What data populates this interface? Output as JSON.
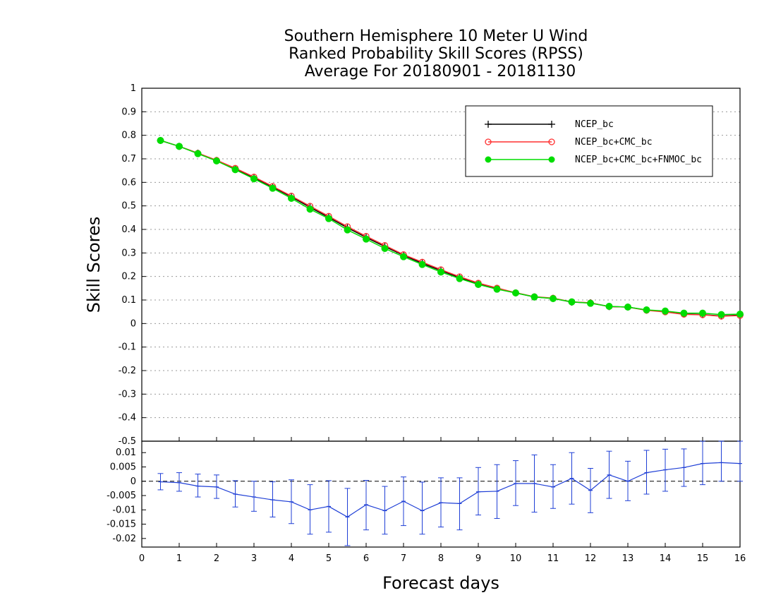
{
  "chart_data": {
    "type": "line",
    "title": [
      "Southern Hemisphere 10 Meter U Wind",
      "Ranked Probability Skill Scores (RPSS)",
      "Average For 20180901 - 20181130"
    ],
    "xlabel": "Forecast days",
    "ylabel": "Skill Scores",
    "xlim": [
      0,
      16
    ],
    "x_ticks": [
      "0",
      "1",
      "2",
      "3",
      "4",
      "5",
      "6",
      "7",
      "8",
      "9",
      "10",
      "11",
      "12",
      "13",
      "14",
      "15",
      "16"
    ],
    "x": [
      0.5,
      1,
      1.5,
      2,
      2.5,
      3,
      3.5,
      4,
      4.5,
      5,
      5.5,
      6,
      6.5,
      7,
      7.5,
      8,
      8.5,
      9,
      9.5,
      10,
      10.5,
      11,
      11.5,
      12,
      12.5,
      13,
      13.5,
      14,
      14.5,
      15,
      15.5,
      16
    ],
    "legend_position": "top-right",
    "top_panel": {
      "ylim": [
        -0.5,
        1
      ],
      "y_ticks": [
        "1",
        "0.9",
        "0.8",
        "0.7",
        "0.6",
        "0.5",
        "0.4",
        "0.3",
        "0.2",
        "0.1",
        "0",
        "-0.1",
        "-0.2",
        "-0.3",
        "-0.4",
        "-0.5"
      ],
      "grid": true,
      "series": [
        {
          "name": "NCEP_bc",
          "color": "#000000",
          "marker": "plus",
          "values": [
            0.778,
            0.753,
            0.724,
            0.693,
            0.658,
            0.62,
            0.58,
            0.538,
            0.494,
            0.451,
            0.407,
            0.366,
            0.327,
            0.29,
            0.256,
            0.225,
            0.195,
            0.168,
            0.148,
            0.13,
            0.113,
            0.107,
            0.091,
            0.088,
            0.072,
            0.07,
            0.057,
            0.051,
            0.04,
            0.038,
            0.032,
            0.036
          ]
        },
        {
          "name": "NCEP_bc+CMC_bc",
          "color": "#ff3030",
          "marker": "open-circle",
          "values": [
            0.778,
            0.753,
            0.724,
            0.694,
            0.66,
            0.623,
            0.583,
            0.542,
            0.499,
            0.456,
            0.412,
            0.371,
            0.332,
            0.293,
            0.261,
            0.229,
            0.199,
            0.172,
            0.151,
            0.131,
            0.114,
            0.108,
            0.092,
            0.088,
            0.072,
            0.07,
            0.056,
            0.049,
            0.039,
            0.037,
            0.031,
            0.034
          ]
        },
        {
          "name": "NCEP_bc+CMC_bc+FNMOC_bc",
          "color": "#00dd00",
          "marker": "filled-circle",
          "values": [
            0.778,
            0.753,
            0.722,
            0.691,
            0.654,
            0.615,
            0.575,
            0.532,
            0.486,
            0.446,
            0.398,
            0.359,
            0.319,
            0.284,
            0.251,
            0.219,
            0.191,
            0.166,
            0.146,
            0.13,
            0.113,
            0.106,
            0.092,
            0.086,
            0.073,
            0.07,
            0.058,
            0.053,
            0.044,
            0.044,
            0.038,
            0.04
          ]
        }
      ]
    },
    "bottom_panel": {
      "ylim": [
        -0.023,
        0.014
      ],
      "y_ticks": [
        "0.01",
        "0.005",
        "0",
        "-0.005",
        "-0.01",
        "-0.015",
        "-0.02"
      ],
      "reference_line": 0,
      "series": [
        {
          "name": "",
          "color": "#1f3fd6",
          "error_bars": true,
          "values": [
            -0.0002,
            -0.0005,
            -0.0017,
            -0.002,
            -0.0045,
            -0.0055,
            -0.0065,
            -0.0072,
            -0.01,
            -0.0088,
            -0.0125,
            -0.0082,
            -0.0103,
            -0.007,
            -0.0103,
            -0.0075,
            -0.0078,
            -0.0037,
            -0.0035,
            -0.0008,
            -0.0008,
            -0.002,
            0.001,
            -0.0032,
            0.0022,
            0.0,
            0.003,
            0.004,
            0.0048,
            0.0062,
            0.0065,
            0.0062
          ],
          "lower": [
            -0.003,
            -0.0035,
            -0.0055,
            -0.006,
            -0.009,
            -0.0105,
            -0.0125,
            -0.0148,
            -0.0185,
            -0.0178,
            -0.0225,
            -0.017,
            -0.0185,
            -0.0155,
            -0.0185,
            -0.016,
            -0.017,
            -0.0118,
            -0.013,
            -0.0085,
            -0.0108,
            -0.0095,
            -0.008,
            -0.011,
            -0.006,
            -0.0068,
            -0.0045,
            -0.0035,
            -0.0018,
            -0.0012,
            0.0,
            0.0
          ],
          "upper": [
            0.0027,
            0.003,
            0.0025,
            0.0022,
            0.0002,
            0.0,
            -0.0002,
            0.0005,
            -0.0012,
            0.0002,
            -0.0025,
            0.0003,
            -0.0018,
            0.0015,
            -0.0003,
            0.0012,
            0.0012,
            0.0048,
            0.0058,
            0.0072,
            0.0092,
            0.0058,
            0.01,
            0.0045,
            0.0105,
            0.007,
            0.0108,
            0.0112,
            0.0113,
            0.014,
            0.014,
            0.014
          ]
        }
      ]
    }
  }
}
